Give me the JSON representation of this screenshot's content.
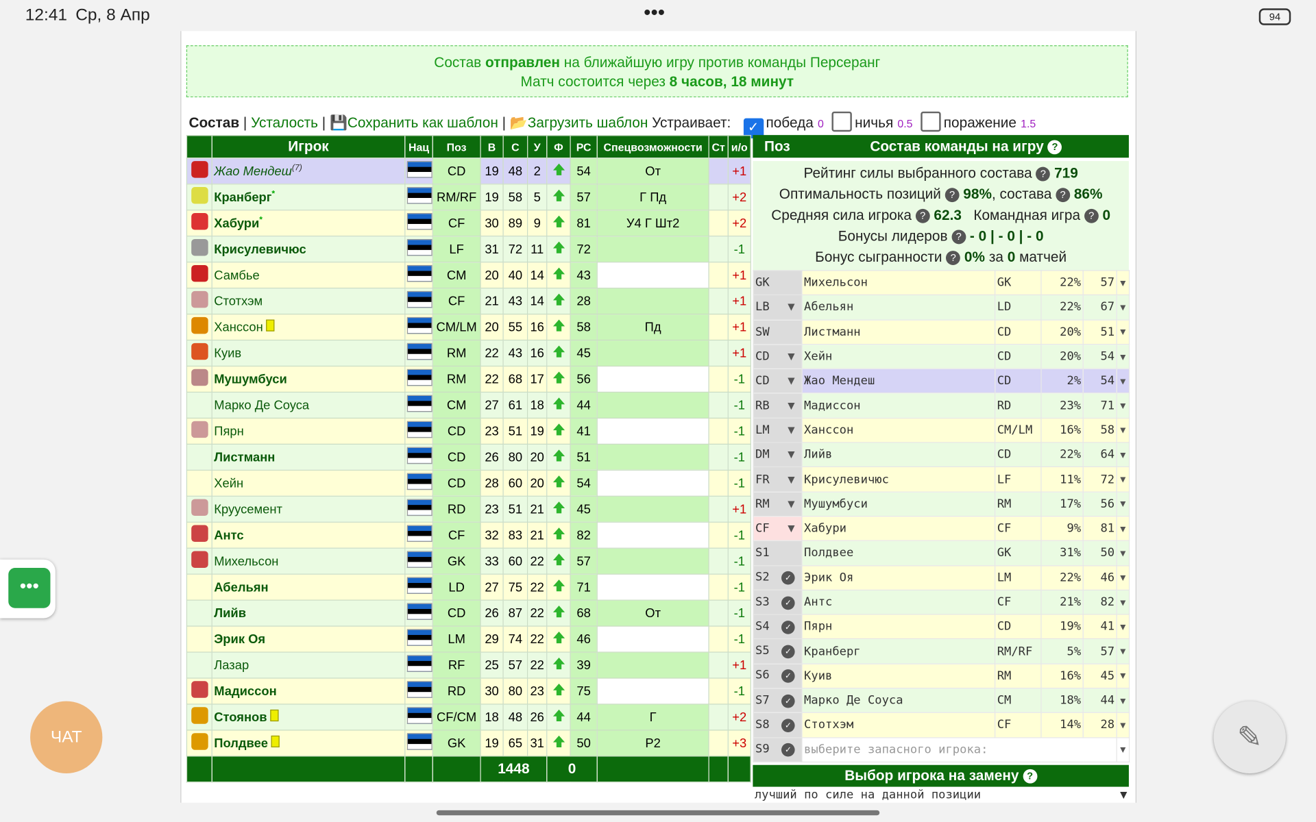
{
  "status_bar": {
    "time": "12:41",
    "date": "Ср, 8 Апр",
    "battery": "94"
  },
  "notice": {
    "t1": "Состав",
    "b1": "отправлен",
    "t2": "на ближайшую игру против команды Персеранг",
    "t3": "Матч состоится через",
    "b2": "8 часов, 18 минут"
  },
  "toolbar": {
    "tab_active": "Состав",
    "tab2": "Усталость",
    "save": "Сохранить как шаблон",
    "load": "Загрузить шаблон",
    "suits": "Устраивает:",
    "options": [
      {
        "label": "победа",
        "checked": true,
        "value": "0"
      },
      {
        "label": "ничья",
        "checked": false,
        "value": "0.5"
      },
      {
        "label": "поражение",
        "checked": false,
        "value": "1.5"
      }
    ]
  },
  "players": {
    "headers": [
      "Игрок",
      "Нац",
      "Поз",
      "В",
      "С",
      "У",
      "Ф",
      "РС",
      "Спецвозможности",
      "Ст",
      "и/о"
    ],
    "rows": [
      {
        "name": "Жао Мендеш",
        "sup": "(7)",
        "pos": "CD",
        "v": "19",
        "s": "48",
        "u": "2",
        "rs": "54",
        "spec": "От",
        "io": "+1",
        "bold": false,
        "card": false
      },
      {
        "name": "Кранберг",
        "sup": "*",
        "pos": "RM/RF",
        "v": "19",
        "s": "58",
        "u": "5",
        "rs": "57",
        "spec": "Г Пд",
        "io": "+2",
        "bold": true,
        "card": false
      },
      {
        "name": "Хабури",
        "sup": "*",
        "pos": "CF",
        "v": "30",
        "s": "89",
        "u": "9",
        "rs": "81",
        "spec": "У4 Г Шт2",
        "io": "+2",
        "bold": true,
        "card": false
      },
      {
        "name": "Крисулевичюс",
        "pos": "LF",
        "v": "31",
        "s": "72",
        "u": "11",
        "rs": "72",
        "io": "-1",
        "bold": true,
        "card": false
      },
      {
        "name": "Самбье",
        "pos": "CM",
        "v": "20",
        "s": "40",
        "u": "14",
        "rs": "43",
        "io": "+1",
        "bold": false,
        "card": false
      },
      {
        "name": "Стотхэм",
        "pos": "CF",
        "v": "21",
        "s": "43",
        "u": "14",
        "rs": "28",
        "io": "+1",
        "bold": false,
        "card": false
      },
      {
        "name": "Ханссон",
        "pos": "CM/LM",
        "v": "20",
        "s": "55",
        "u": "16",
        "rs": "58",
        "spec": "Пд",
        "io": "+1",
        "bold": false,
        "card": true
      },
      {
        "name": "Куив",
        "pos": "RM",
        "v": "22",
        "s": "43",
        "u": "16",
        "rs": "45",
        "io": "+1",
        "bold": false,
        "card": false
      },
      {
        "name": "Мушумбуси",
        "pos": "RM",
        "v": "22",
        "s": "68",
        "u": "17",
        "rs": "56",
        "io": "-1",
        "bold": true,
        "card": false
      },
      {
        "name": "Марко Де Соуса",
        "pos": "CM",
        "v": "27",
        "s": "61",
        "u": "18",
        "rs": "44",
        "io": "-1",
        "bold": false,
        "card": false
      },
      {
        "name": "Пярн",
        "pos": "CD",
        "v": "23",
        "s": "51",
        "u": "19",
        "rs": "41",
        "io": "-1",
        "bold": false,
        "card": false
      },
      {
        "name": "Листманн",
        "pos": "CD",
        "v": "26",
        "s": "80",
        "u": "20",
        "rs": "51",
        "io": "-1",
        "bold": true,
        "card": false
      },
      {
        "name": "Хейн",
        "pos": "CD",
        "v": "28",
        "s": "60",
        "u": "20",
        "rs": "54",
        "io": "-1",
        "bold": false,
        "card": false
      },
      {
        "name": "Круусемент",
        "pos": "RD",
        "v": "23",
        "s": "51",
        "u": "21",
        "rs": "45",
        "io": "+1",
        "bold": false,
        "card": false
      },
      {
        "name": "Антс",
        "pos": "CF",
        "v": "32",
        "s": "83",
        "u": "21",
        "rs": "82",
        "io": "-1",
        "bold": true,
        "card": false
      },
      {
        "name": "Михельсон",
        "pos": "GK",
        "v": "33",
        "s": "60",
        "u": "22",
        "rs": "57",
        "io": "-1",
        "bold": false,
        "card": false
      },
      {
        "name": "Абельян",
        "pos": "LD",
        "v": "27",
        "s": "75",
        "u": "22",
        "rs": "71",
        "io": "-1",
        "bold": true,
        "card": false
      },
      {
        "name": "Лийв",
        "pos": "CD",
        "v": "26",
        "s": "87",
        "u": "22",
        "rs": "68",
        "spec": "От",
        "io": "-1",
        "bold": true,
        "card": false
      },
      {
        "name": "Эрик Оя",
        "pos": "LM",
        "v": "29",
        "s": "74",
        "u": "22",
        "rs": "46",
        "io": "-1",
        "bold": true,
        "card": false
      },
      {
        "name": "Лазар",
        "pos": "RF",
        "v": "25",
        "s": "57",
        "u": "22",
        "rs": "39",
        "io": "+1",
        "bold": false,
        "card": false
      },
      {
        "name": "Мадиссон",
        "pos": "RD",
        "v": "30",
        "s": "80",
        "u": "23",
        "rs": "75",
        "io": "-1",
        "bold": true,
        "card": false
      },
      {
        "name": "Стоянов",
        "pos": "CF/CM",
        "v": "18",
        "s": "48",
        "u": "26",
        "rs": "44",
        "spec": "Г",
        "io": "+2",
        "bold": true,
        "card": true
      },
      {
        "name": "Полдвее",
        "pos": "GK",
        "v": "19",
        "s": "65",
        "u": "31",
        "rs": "50",
        "spec": "Р2",
        "io": "+3",
        "bold": true,
        "card": true
      }
    ],
    "total": "1448",
    "f_total": "0"
  },
  "lineup": {
    "header_pos": "Поз",
    "header": "Состав команды на игру",
    "rating_label": "Рейтинг силы выбранного состава",
    "rating": "719",
    "opt_label": "Оптимальность позиций",
    "opt": "98%",
    "sost_label": ", состава",
    "sost": "86%",
    "avg_label": "Средняя сила игрока",
    "avg": "62.3",
    "team_label": "Командная игра",
    "team": "0",
    "lead_label": "Бонусы лидеров",
    "lead": "- 0 | - 0 | - 0",
    "syn_label": "Бонус сыгранности",
    "syn": "0%",
    "syn_mid": "за",
    "syn_n": "0",
    "syn_end": "матчей",
    "rows": [
      [
        "GK",
        "Михельсон",
        "GK",
        "22%",
        "57"
      ],
      [
        "LB",
        "Абельян",
        "LD",
        "22%",
        "67"
      ],
      [
        "SW",
        "Листманн",
        "CD",
        "20%",
        "51"
      ],
      [
        "CD",
        "Хейн",
        "CD",
        "20%",
        "54"
      ],
      [
        "CD",
        "Жао Мендеш",
        "CD",
        "2%",
        "54"
      ],
      [
        "RB",
        "Мадиссон",
        "RD",
        "23%",
        "71"
      ],
      [
        "LM",
        "Ханссон",
        "CM/LM",
        "16%",
        "58"
      ],
      [
        "DM",
        "Лийв",
        "CD",
        "22%",
        "64"
      ],
      [
        "FR",
        "Крисулевичюс",
        "LF",
        "11%",
        "72"
      ],
      [
        "RM",
        "Мушумбуси",
        "RM",
        "17%",
        "56"
      ],
      [
        "CF",
        "Хабури",
        "CF",
        "9%",
        "81"
      ],
      [
        "S1",
        "Полдвее",
        "GK",
        "31%",
        "50"
      ],
      [
        "S2",
        "Эрик Оя",
        "LM",
        "22%",
        "46"
      ],
      [
        "S3",
        "Антс",
        "CF",
        "21%",
        "82"
      ],
      [
        "S4",
        "Пярн",
        "CD",
        "19%",
        "41"
      ],
      [
        "S5",
        "Кранберг",
        "RM/RF",
        "5%",
        "57"
      ],
      [
        "S6",
        "Куив",
        "RM",
        "16%",
        "45"
      ],
      [
        "S7",
        "Марко Де Соуса",
        "CM",
        "18%",
        "44"
      ],
      [
        "S8",
        "Стотхэм",
        "CF",
        "14%",
        "28"
      ],
      [
        "S9",
        "выберите запасного игрока:"
      ]
    ],
    "sub_header": "Выбор игрока на замену",
    "sub_select": "лучший по силе на данной позиции"
  },
  "chat": "ЧАТ"
}
